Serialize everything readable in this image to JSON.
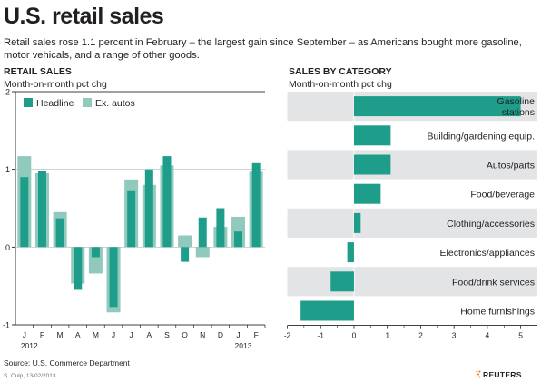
{
  "title": "U.S. retail sales",
  "subtitle": "Retail sales rose 1.1 percent in February – the largest gain since September – as Americans bought more gasoline, motor vehicals, and a range of other goods.",
  "source": "Source: U.S. Commerce Department",
  "credit": "S. Culp, 13/02/2013",
  "logo_text": "REUTERS",
  "colors": {
    "primary": "#1e9e8a",
    "secondary": "#92c9bd",
    "band": "#e3e4e5",
    "text": "#231f20"
  },
  "chart_data": [
    {
      "type": "bar",
      "title": "RETAIL SALES",
      "subtitle": "Month-on-month pct chg",
      "categories": [
        "J",
        "F",
        "M",
        "A",
        "M",
        "J",
        "J",
        "A",
        "S",
        "O",
        "N",
        "D",
        "J",
        "F"
      ],
      "year_labels": [
        "2012",
        "2013"
      ],
      "series": [
        {
          "name": "Headline",
          "color": "#1e9e8a",
          "values": [
            0.9,
            0.98,
            0.37,
            -0.55,
            -0.13,
            -0.77,
            0.73,
            1.0,
            1.17,
            -0.19,
            0.38,
            0.5,
            0.2,
            1.08
          ]
        },
        {
          "name": "Ex. autos",
          "color": "#92c9bd",
          "values": [
            1.17,
            0.95,
            0.45,
            -0.47,
            -0.34,
            -0.84,
            0.87,
            0.8,
            1.05,
            0.15,
            -0.13,
            0.26,
            0.39,
            0.97
          ]
        }
      ],
      "ylim": [
        -1,
        2
      ],
      "yticks": [
        "2",
        "1",
        "0",
        "-1"
      ],
      "legend": "top-left"
    },
    {
      "type": "bar",
      "orientation": "horizontal",
      "title": "SALES BY CATEGORY",
      "subtitle": "Month-on-month pct chg",
      "categories": [
        "Gasoline stations",
        "Building/gardening equip.",
        "Autos/parts",
        "Food/beverage",
        "Clothing/accessories",
        "Electronics/appliances",
        "Food/drink services",
        "Home furnishings"
      ],
      "label_lines": [
        [
          "Gasoline",
          "stations"
        ],
        [
          "Building/gardening equip."
        ],
        [
          "Autos/parts"
        ],
        [
          "Food/beverage"
        ],
        [
          "Clothing/accessories"
        ],
        [
          "Electronics/appliances"
        ],
        [
          "Food/drink services"
        ],
        [
          "Home furnishings"
        ]
      ],
      "values": [
        5.0,
        1.1,
        1.1,
        0.8,
        0.2,
        -0.2,
        -0.7,
        -1.6
      ],
      "xlim": [
        -2,
        5.5
      ],
      "xticks": [
        "-2",
        "-1",
        "0",
        "1",
        "2",
        "3",
        "4",
        "5"
      ],
      "color": "#1e9e8a"
    }
  ]
}
